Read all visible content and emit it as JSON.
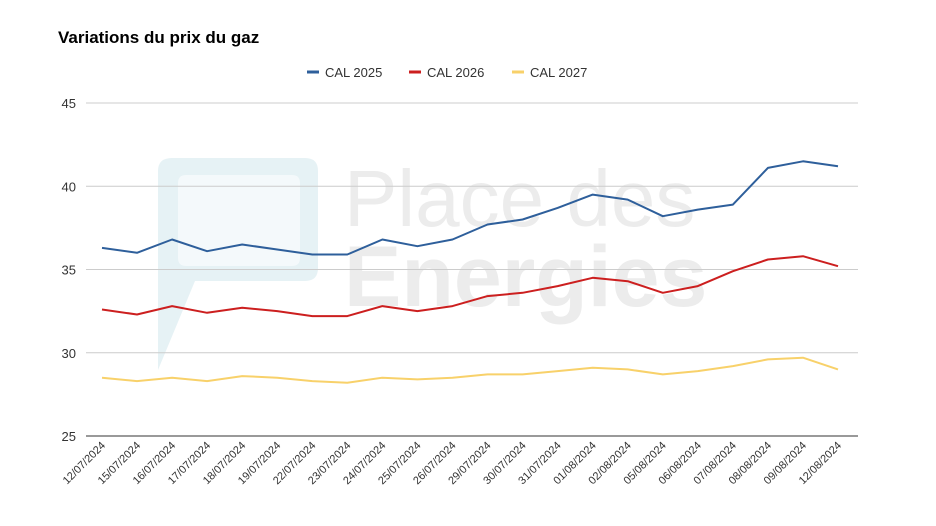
{
  "chart_data": {
    "type": "line",
    "title": "Variations du prix du gaz",
    "watermark": "Place des Energies",
    "categories": [
      "12/07/2024",
      "15/07/2024",
      "16/07/2024",
      "17/07/2024",
      "18/07/2024",
      "19/07/2024",
      "22/07/2024",
      "23/07/2024",
      "24/07/2024",
      "25/07/2024",
      "26/07/2024",
      "29/07/2024",
      "30/07/2024",
      "31/07/2024",
      "01/08/2024",
      "02/08/2024",
      "05/08/2024",
      "06/08/2024",
      "07/08/2024",
      "08/08/2024",
      "09/08/2024",
      "12/08/2024"
    ],
    "series": [
      {
        "name": "CAL 2025",
        "color": "#2e5f9b",
        "values": [
          36.3,
          36.0,
          36.8,
          36.1,
          36.5,
          36.2,
          35.9,
          35.9,
          36.8,
          36.4,
          36.8,
          37.7,
          38.0,
          38.7,
          39.5,
          39.2,
          38.2,
          38.6,
          38.9,
          41.1,
          41.5,
          41.2
        ]
      },
      {
        "name": "CAL 2026",
        "color": "#cc1f1f",
        "values": [
          32.6,
          32.3,
          32.8,
          32.4,
          32.7,
          32.5,
          32.2,
          32.2,
          32.8,
          32.5,
          32.8,
          33.4,
          33.6,
          34.0,
          34.5,
          34.3,
          33.6,
          34.0,
          34.9,
          35.6,
          35.8,
          35.2
        ]
      },
      {
        "name": "CAL 2027",
        "color": "#f8d16a",
        "values": [
          28.5,
          28.3,
          28.5,
          28.3,
          28.6,
          28.5,
          28.3,
          28.2,
          28.5,
          28.4,
          28.5,
          28.7,
          28.7,
          28.9,
          29.1,
          29.0,
          28.7,
          28.9,
          29.2,
          29.6,
          29.7,
          29.0
        ]
      }
    ],
    "ylim": [
      25,
      45
    ],
    "yticks": [
      25,
      30,
      35,
      40,
      45
    ],
    "grid": true,
    "legend_position": "top-center"
  }
}
